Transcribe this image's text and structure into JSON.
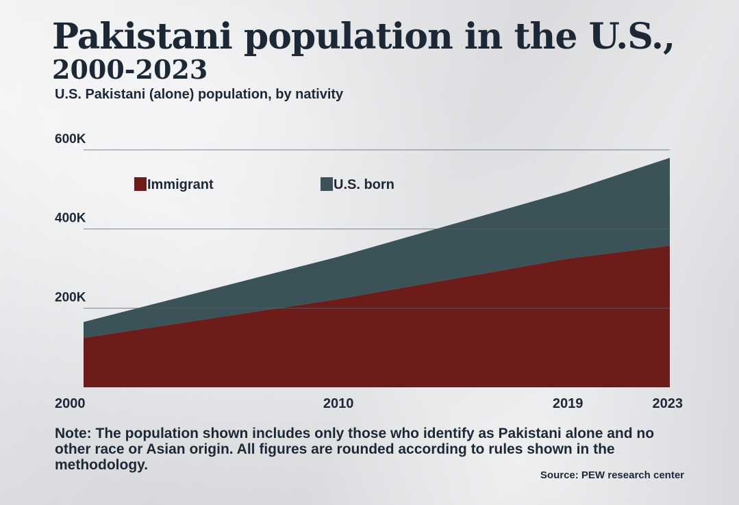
{
  "header": {
    "title_line1": "Pakistani population in the U.S.,",
    "title_line2": "2000-2023",
    "subtitle": "U.S. Pakistani (alone) population, by nativity"
  },
  "chart_data": {
    "type": "area",
    "stacked": true,
    "x": [
      2000,
      2010,
      2019,
      2023
    ],
    "x_tick_labels": [
      "2000",
      "2010",
      "2019",
      "2023"
    ],
    "y_tick_values": [
      200000,
      400000,
      600000
    ],
    "y_tick_labels": [
      "200K",
      "400K",
      "600K"
    ],
    "ylim": [
      0,
      600000
    ],
    "xlim": [
      2000,
      2023
    ],
    "series": [
      {
        "name": "Immigrant",
        "values": [
          125000,
          223000,
          325000,
          358000
        ],
        "color": "#6e1c1a"
      },
      {
        "name": "U.S. born",
        "values": [
          40000,
          107000,
          170000,
          222000
        ],
        "color": "#3b5259"
      }
    ],
    "legend": [
      "Immigrant",
      "U.S. born"
    ],
    "gridlines": true,
    "legend_position": "top-left"
  },
  "footer": {
    "note": "Note: The population shown includes only those who identify as Pakistani alone and no other race or Asian origin. All figures are rounded according to rules shown in the methodology.",
    "source": "Source: PEW research center"
  }
}
